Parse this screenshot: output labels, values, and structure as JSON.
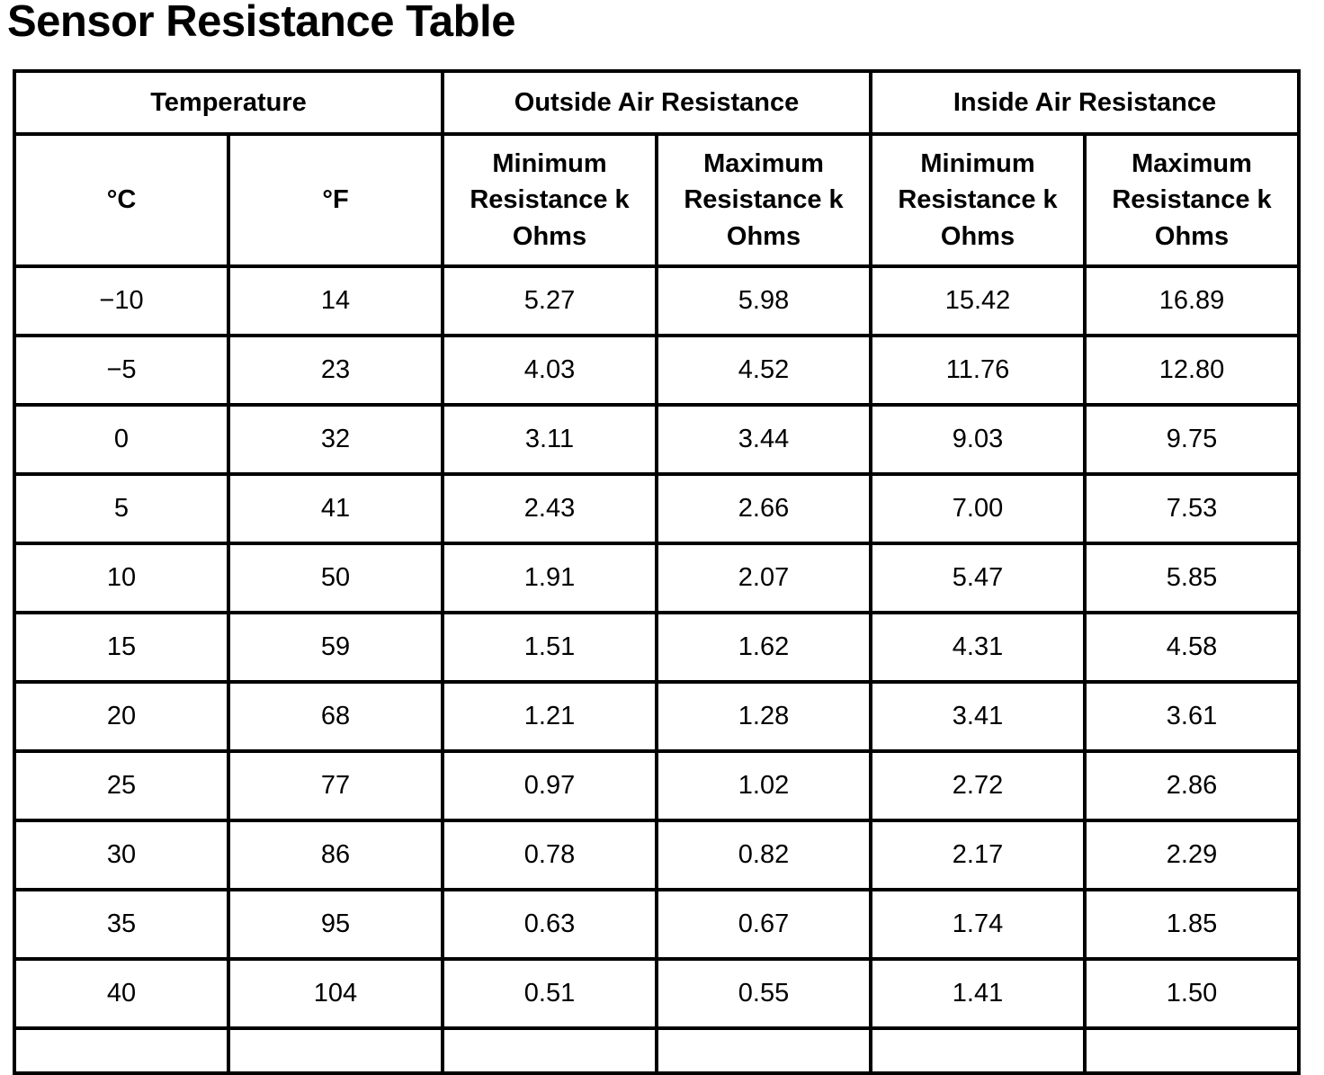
{
  "page": {
    "title": "Sensor Resistance Table"
  },
  "colors": {
    "background": "#ffffff",
    "text": "#000000",
    "border": "#000000"
  },
  "table": {
    "group_headers": [
      {
        "label": "Temperature"
      },
      {
        "label": "Outside Air Resistance"
      },
      {
        "label": "Inside Air Resistance"
      }
    ],
    "column_headers": [
      "°C",
      "°F",
      "Minimum Resistance k Ohms",
      "Maximum Resistance k Ohms",
      "Minimum Resistance k Ohms",
      "Maximum Resistance k Ohms"
    ],
    "rows": [
      [
        "−10",
        "14",
        "5.27",
        "5.98",
        "15.42",
        "16.89"
      ],
      [
        "−5",
        "23",
        "4.03",
        "4.52",
        "11.76",
        "12.80"
      ],
      [
        "0",
        "32",
        "3.11",
        "3.44",
        "9.03",
        "9.75"
      ],
      [
        "5",
        "41",
        "2.43",
        "2.66",
        "7.00",
        "7.53"
      ],
      [
        "10",
        "50",
        "1.91",
        "2.07",
        "5.47",
        "5.85"
      ],
      [
        "15",
        "59",
        "1.51",
        "1.62",
        "4.31",
        "4.58"
      ],
      [
        "20",
        "68",
        "1.21",
        "1.28",
        "3.41",
        "3.61"
      ],
      [
        "25",
        "77",
        "0.97",
        "1.02",
        "2.72",
        "2.86"
      ],
      [
        "30",
        "86",
        "0.78",
        "0.82",
        "2.17",
        "2.29"
      ],
      [
        "35",
        "95",
        "0.63",
        "0.67",
        "1.74",
        "1.85"
      ],
      [
        "40",
        "104",
        "0.51",
        "0.55",
        "1.41",
        "1.50"
      ]
    ]
  }
}
